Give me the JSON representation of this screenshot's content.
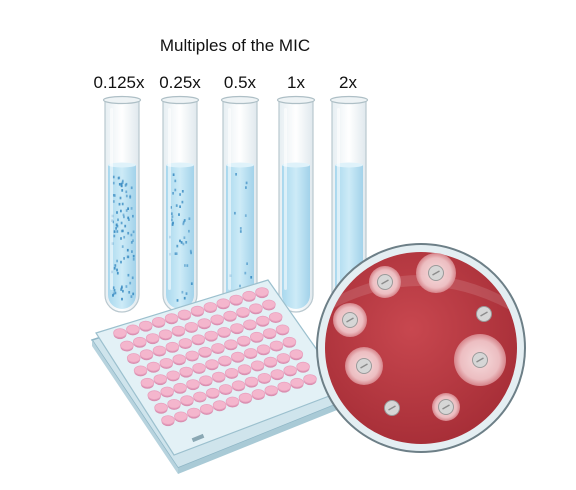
{
  "title": "Multiples of the MIC",
  "tubes": [
    {
      "label": "0.125x",
      "particles": "dense"
    },
    {
      "label": "0.25x",
      "particles": "medium"
    },
    {
      "label": "0.5x",
      "particles": "sparse"
    },
    {
      "label": "1x",
      "particles": "none"
    },
    {
      "label": "2x",
      "particles": "none"
    }
  ],
  "colors": {
    "tube_liquid": "#bfe3f3",
    "particle": "#3f8fc4",
    "plate_body": "#d9ecf3",
    "well": "#f4b6cd",
    "dish_agar": "#b5343d",
    "inhibition_zone": "#f5d7d9",
    "disk": "#bfbfbf"
  },
  "petri_disks": 8,
  "plate_wells": {
    "rows": 8,
    "columns": 12
  }
}
